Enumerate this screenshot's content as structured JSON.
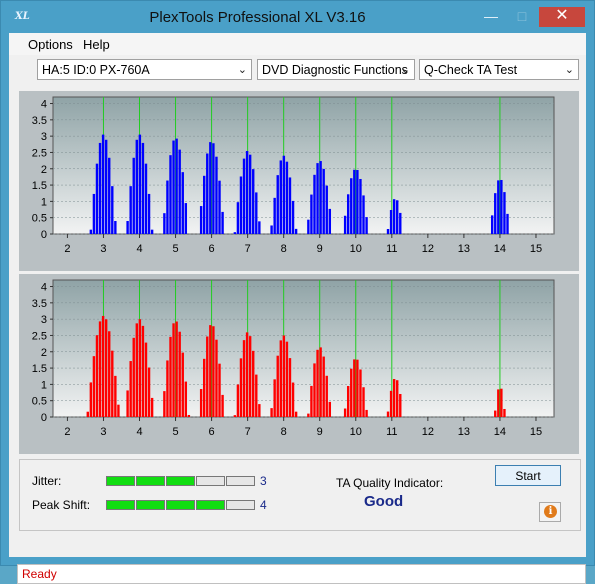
{
  "window": {
    "title": "PlexTools Professional XL V3.16",
    "logo": "XL",
    "min_icon": "minimize-icon",
    "max_icon": "maximize-icon",
    "close_icon": "close-icon"
  },
  "menu": {
    "options": "Options",
    "help": "Help"
  },
  "toolbar": {
    "drive": "HA:5 ID:0  PX-760A",
    "category": "DVD Diagnostic Functions",
    "test": "Q-Check TA Test"
  },
  "colors": {
    "grid": "#22cc22",
    "upper_bars": "#0000ff",
    "lower_bars": "#ff0000",
    "plot_bg_top": "#8fa3a6",
    "plot_bg_bottom": "#f2f3f3"
  },
  "chart_data": [
    {
      "type": "bar",
      "series": [
        {
          "color": "#0000ff"
        }
      ],
      "xlim": [
        1.6,
        15.5
      ],
      "ylim": [
        0,
        4.2
      ],
      "xticks": [
        2,
        3,
        4,
        5,
        6,
        7,
        8,
        9,
        10,
        11,
        12,
        13,
        14,
        15
      ],
      "yticks": [
        "0",
        "0.5",
        "1",
        "1.5",
        "2",
        "2.5",
        "3",
        "3.5",
        "4"
      ],
      "vlines": [
        3,
        4,
        5,
        6,
        7,
        8,
        9,
        10,
        11,
        14
      ],
      "peaks": [
        {
          "x": 3.0,
          "h": 3.05,
          "w": 0.72
        },
        {
          "x": 4.0,
          "h": 3.05,
          "w": 0.72
        },
        {
          "x": 5.0,
          "h": 2.95,
          "w": 0.72
        },
        {
          "x": 6.0,
          "h": 2.85,
          "w": 0.72
        },
        {
          "x": 7.0,
          "h": 2.55,
          "w": 0.72
        },
        {
          "x": 8.0,
          "h": 2.4,
          "w": 0.72
        },
        {
          "x": 9.0,
          "h": 2.25,
          "w": 0.72
        },
        {
          "x": 10.0,
          "h": 2.0,
          "w": 0.72
        },
        {
          "x": 11.1,
          "h": 1.1,
          "w": 0.45
        },
        {
          "x": 14.0,
          "h": 1.7,
          "w": 0.55
        }
      ]
    },
    {
      "type": "bar",
      "series": [
        {
          "color": "#ff0000"
        }
      ],
      "xlim": [
        1.6,
        15.5
      ],
      "ylim": [
        0,
        4.2
      ],
      "xticks": [
        2,
        3,
        4,
        5,
        6,
        7,
        8,
        9,
        10,
        11,
        12,
        13,
        14,
        15
      ],
      "yticks": [
        "0",
        "0.5",
        "1",
        "1.5",
        "2",
        "2.5",
        "3",
        "3.5",
        "4"
      ],
      "vlines": [
        3,
        4,
        5,
        6,
        7,
        8,
        9,
        10,
        11,
        14
      ],
      "peaks": [
        {
          "x": 3.0,
          "h": 3.1,
          "w": 0.9
        },
        {
          "x": 4.0,
          "h": 3.0,
          "w": 0.8
        },
        {
          "x": 5.0,
          "h": 2.95,
          "w": 0.75
        },
        {
          "x": 6.0,
          "h": 2.85,
          "w": 0.72
        },
        {
          "x": 7.0,
          "h": 2.6,
          "w": 0.72
        },
        {
          "x": 8.0,
          "h": 2.5,
          "w": 0.72
        },
        {
          "x": 9.0,
          "h": 2.15,
          "w": 0.65
        },
        {
          "x": 10.0,
          "h": 1.8,
          "w": 0.65
        },
        {
          "x": 11.1,
          "h": 1.2,
          "w": 0.45
        },
        {
          "x": 14.0,
          "h": 0.95,
          "w": 0.3
        }
      ]
    }
  ],
  "status": {
    "jitter_label": "Jitter:",
    "jitter_value": "3",
    "jitter_level": 3,
    "peak_label": "Peak Shift:",
    "peak_value": "4",
    "peak_level": 4,
    "meter_segments": 5,
    "ta_label": "TA Quality Indicator:",
    "ta_value": "Good",
    "start_label": "Start",
    "info_icon": "info-icon"
  },
  "statusbar": {
    "text": "Ready"
  }
}
